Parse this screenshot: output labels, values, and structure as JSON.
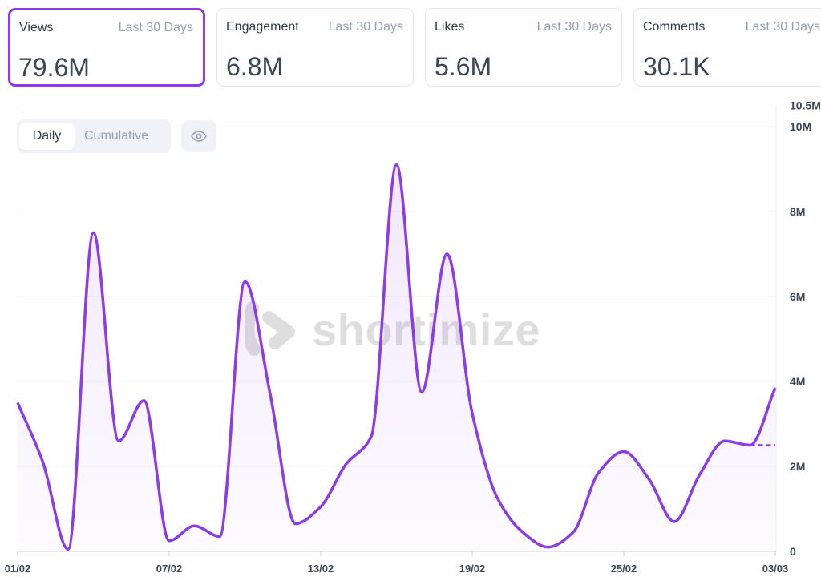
{
  "cards": [
    {
      "title": "Views",
      "period": "Last 30 Days",
      "value": "79.6M",
      "active": true
    },
    {
      "title": "Engagement",
      "period": "Last 30 Days",
      "value": "6.8M",
      "active": false
    },
    {
      "title": "Likes",
      "period": "Last 30 Days",
      "value": "5.6M",
      "active": false
    },
    {
      "title": "Comments",
      "period": "Last 30 Days",
      "value": "30.1K",
      "active": false
    }
  ],
  "toggle": {
    "daily": "Daily",
    "cumulative": "Cumulative",
    "selected": "Daily"
  },
  "watermark": "shortimize",
  "colors": {
    "accent": "#8b3be8",
    "grid": "#f1f3f7"
  },
  "chart_data": {
    "type": "line",
    "title": "Views",
    "x_ticks": [
      "01/02",
      "07/02",
      "13/02",
      "19/02",
      "25/02",
      "03/03"
    ],
    "x_tick_index": [
      0,
      6,
      12,
      18,
      24,
      30
    ],
    "y_ticks": [
      "0",
      "2M",
      "4M",
      "6M",
      "8M",
      "10M",
      "10.5M"
    ],
    "y_tick_values": [
      0,
      2,
      4,
      6,
      8,
      10,
      10.5
    ],
    "ylim": [
      0,
      10.5
    ],
    "y_unit": "M",
    "series": [
      {
        "name": "Views",
        "values": [
          3.5,
          2.1,
          0.05,
          7.5,
          2.6,
          3.55,
          0.25,
          0.6,
          0.35,
          6.35,
          3.7,
          0.65,
          1.05,
          2.05,
          2.7,
          9.1,
          3.75,
          7.0,
          3.25,
          1.25,
          0.45,
          0.1,
          0.45,
          1.85,
          2.35,
          1.7,
          0.7,
          1.8,
          2.6,
          2.5,
          3.85
        ]
      }
    ],
    "projection": {
      "from_index": 29,
      "to_index": 30,
      "value": 2.5,
      "style": "dashed"
    }
  }
}
